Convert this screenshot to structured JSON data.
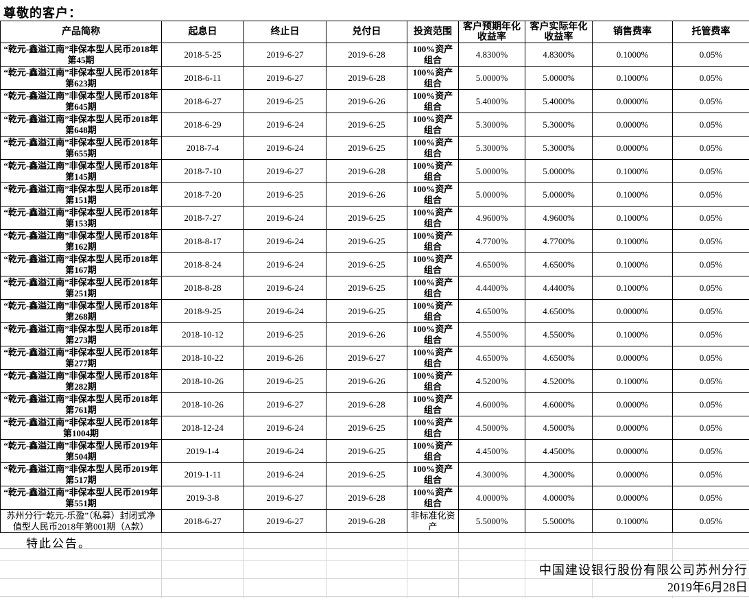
{
  "page": {
    "greeting": "尊敬的客户：",
    "closing": "特此公告。",
    "signature": "中国建设银行股份有限公司苏州分行",
    "date": "2019年6月28日"
  },
  "table": {
    "headers": [
      "产品简称",
      "起息日",
      "终止日",
      "兑付日",
      "投资范围",
      "客户预期年化收益率",
      "客户实际年化收益率",
      "销售费率",
      "托管费率"
    ],
    "rows": [
      {
        "product": "“乾元-鑫溢江南”非保本型人民币2018年第45期",
        "value_date": "2018-5-25",
        "end_date": "2019-6-27",
        "payment_date": "2019-6-28",
        "scope": "100%资产组合",
        "expected_rate": "4.8300%",
        "actual_rate": "4.8300%",
        "sales_fee": "0.1000%",
        "custody_fee": "0.05%",
        "emphasis": true
      },
      {
        "product": "“乾元-鑫溢江南”非保本型人民币2018年第623期",
        "value_date": "2018-6-11",
        "end_date": "2019-6-27",
        "payment_date": "2019-6-28",
        "scope": "100%资产组合",
        "expected_rate": "5.0000%",
        "actual_rate": "5.0000%",
        "sales_fee": "0.1000%",
        "custody_fee": "0.05%",
        "emphasis": true
      },
      {
        "product": "“乾元-鑫溢江南”非保本型人民币2018年第645期",
        "value_date": "2018-6-27",
        "end_date": "2019-6-25",
        "payment_date": "2019-6-26",
        "scope": "100%资产组合",
        "expected_rate": "5.4000%",
        "actual_rate": "5.4000%",
        "sales_fee": "0.0000%",
        "custody_fee": "0.05%",
        "emphasis": true
      },
      {
        "product": "“乾元-鑫溢江南”非保本型人民币2018年第648期",
        "value_date": "2018-6-29",
        "end_date": "2019-6-24",
        "payment_date": "2019-6-25",
        "scope": "100%资产组合",
        "expected_rate": "5.3000%",
        "actual_rate": "5.3000%",
        "sales_fee": "0.0000%",
        "custody_fee": "0.05%",
        "emphasis": true
      },
      {
        "product": "“乾元-鑫溢江南”非保本型人民币2018年第655期",
        "value_date": "2018-7-4",
        "end_date": "2019-6-24",
        "payment_date": "2019-6-25",
        "scope": "100%资产组合",
        "expected_rate": "5.3000%",
        "actual_rate": "5.3000%",
        "sales_fee": "0.0000%",
        "custody_fee": "0.05%",
        "emphasis": true
      },
      {
        "product": "“乾元-鑫溢江南”非保本型人民币2018年第145期",
        "value_date": "2018-7-10",
        "end_date": "2019-6-27",
        "payment_date": "2019-6-28",
        "scope": "100%资产组合",
        "expected_rate": "5.0000%",
        "actual_rate": "5.0000%",
        "sales_fee": "0.1000%",
        "custody_fee": "0.05%",
        "emphasis": true
      },
      {
        "product": "“乾元-鑫溢江南”非保本型人民币2018年第151期",
        "value_date": "2018-7-20",
        "end_date": "2019-6-25",
        "payment_date": "2019-6-26",
        "scope": "100%资产组合",
        "expected_rate": "5.0000%",
        "actual_rate": "5.0000%",
        "sales_fee": "0.1000%",
        "custody_fee": "0.05%",
        "emphasis": true
      },
      {
        "product": "“乾元-鑫溢江南”非保本型人民币2018年第153期",
        "value_date": "2018-7-27",
        "end_date": "2019-6-24",
        "payment_date": "2019-6-25",
        "scope": "100%资产组合",
        "expected_rate": "4.9600%",
        "actual_rate": "4.9600%",
        "sales_fee": "0.1000%",
        "custody_fee": "0.05%",
        "emphasis": true
      },
      {
        "product": "“乾元-鑫溢江南”非保本型人民币2018年第162期",
        "value_date": "2018-8-17",
        "end_date": "2019-6-24",
        "payment_date": "2019-6-25",
        "scope": "100%资产组合",
        "expected_rate": "4.7700%",
        "actual_rate": "4.7700%",
        "sales_fee": "0.1000%",
        "custody_fee": "0.05%",
        "emphasis": true
      },
      {
        "product": "“乾元-鑫溢江南”非保本型人民币2018年第167期",
        "value_date": "2018-8-24",
        "end_date": "2019-6-24",
        "payment_date": "2019-6-25",
        "scope": "100%资产组合",
        "expected_rate": "4.6500%",
        "actual_rate": "4.6500%",
        "sales_fee": "0.1000%",
        "custody_fee": "0.05%",
        "emphasis": true
      },
      {
        "product": "“乾元-鑫溢江南”非保本型人民币2018年第251期",
        "value_date": "2018-8-28",
        "end_date": "2019-6-24",
        "payment_date": "2019-6-25",
        "scope": "100%资产组合",
        "expected_rate": "4.4400%",
        "actual_rate": "4.4400%",
        "sales_fee": "0.1000%",
        "custody_fee": "0.05%",
        "emphasis": true
      },
      {
        "product": "“乾元-鑫溢江南”非保本型人民币2018年第268期",
        "value_date": "2018-9-25",
        "end_date": "2019-6-24",
        "payment_date": "2019-6-25",
        "scope": "100%资产组合",
        "expected_rate": "4.6500%",
        "actual_rate": "4.6500%",
        "sales_fee": "0.0000%",
        "custody_fee": "0.05%",
        "emphasis": true
      },
      {
        "product": "“乾元-鑫溢江南”非保本型人民币2018年第273期",
        "value_date": "2018-10-12",
        "end_date": "2019-6-25",
        "payment_date": "2019-6-26",
        "scope": "100%资产组合",
        "expected_rate": "4.5500%",
        "actual_rate": "4.5500%",
        "sales_fee": "0.1000%",
        "custody_fee": "0.05%",
        "emphasis": true
      },
      {
        "product": "“乾元-鑫溢江南”非保本型人民币2018年第277期",
        "value_date": "2018-10-22",
        "end_date": "2019-6-26",
        "payment_date": "2019-6-27",
        "scope": "100%资产组合",
        "expected_rate": "4.6500%",
        "actual_rate": "4.6500%",
        "sales_fee": "0.0000%",
        "custody_fee": "0.05%",
        "emphasis": true
      },
      {
        "product": "“乾元-鑫溢江南”非保本型人民币2018年第282期",
        "value_date": "2018-10-26",
        "end_date": "2019-6-25",
        "payment_date": "2019-6-26",
        "scope": "100%资产组合",
        "expected_rate": "4.5200%",
        "actual_rate": "4.5200%",
        "sales_fee": "0.1000%",
        "custody_fee": "0.05%",
        "emphasis": true
      },
      {
        "product": "“乾元-鑫溢江南”非保本型人民币2018年第761期",
        "value_date": "2018-10-26",
        "end_date": "2019-6-27",
        "payment_date": "2019-6-28",
        "scope": "100%资产组合",
        "expected_rate": "4.6000%",
        "actual_rate": "4.6000%",
        "sales_fee": "0.0000%",
        "custody_fee": "0.05%",
        "emphasis": true
      },
      {
        "product": "“乾元-鑫溢江南”非保本型人民币2018年第1004期",
        "value_date": "2018-12-24",
        "end_date": "2019-6-24",
        "payment_date": "2019-6-25",
        "scope": "100%资产组合",
        "expected_rate": "4.5000%",
        "actual_rate": "4.5000%",
        "sales_fee": "0.0000%",
        "custody_fee": "0.05%",
        "emphasis": true
      },
      {
        "product": "“乾元-鑫溢江南”非保本型人民币2019年第504期",
        "value_date": "2019-1-4",
        "end_date": "2019-6-24",
        "payment_date": "2019-6-25",
        "scope": "100%资产组合",
        "expected_rate": "4.4500%",
        "actual_rate": "4.4500%",
        "sales_fee": "0.0000%",
        "custody_fee": "0.05%",
        "emphasis": true
      },
      {
        "product": "“乾元-鑫溢江南”非保本型人民币2019年第517期",
        "value_date": "2019-1-11",
        "end_date": "2019-6-24",
        "payment_date": "2019-6-25",
        "scope": "100%资产组合",
        "expected_rate": "4.3000%",
        "actual_rate": "4.3000%",
        "sales_fee": "0.0000%",
        "custody_fee": "0.05%",
        "emphasis": true
      },
      {
        "product": "“乾元-鑫溢江南”非保本型人民币2019年第551期",
        "value_date": "2019-3-8",
        "end_date": "2019-6-27",
        "payment_date": "2019-6-28",
        "scope": "100%资产组合",
        "expected_rate": "4.0000%",
        "actual_rate": "4.0000%",
        "sales_fee": "0.0000%",
        "custody_fee": "0.05%",
        "emphasis": true
      },
      {
        "product": "苏州分行“乾元-乐盈”（私募）封闭式净值型人民币2018年第001期（A款）",
        "value_date": "2018-6-27",
        "end_date": "2019-6-27",
        "payment_date": "2019-6-28",
        "scope": "非标准化资产",
        "expected_rate": "5.5000%",
        "actual_rate": "5.5000%",
        "sales_fee": "0.1000%",
        "custody_fee": "0.05%",
        "emphasis": false
      }
    ]
  }
}
